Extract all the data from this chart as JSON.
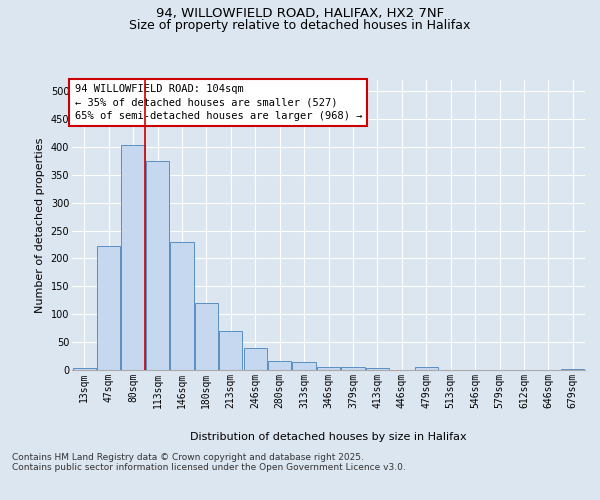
{
  "title1": "94, WILLOWFIELD ROAD, HALIFAX, HX2 7NF",
  "title2": "Size of property relative to detached houses in Halifax",
  "xlabel": "Distribution of detached houses by size in Halifax",
  "ylabel": "Number of detached properties",
  "categories": [
    "13sqm",
    "47sqm",
    "80sqm",
    "113sqm",
    "146sqm",
    "180sqm",
    "213sqm",
    "246sqm",
    "280sqm",
    "313sqm",
    "346sqm",
    "379sqm",
    "413sqm",
    "446sqm",
    "479sqm",
    "513sqm",
    "546sqm",
    "579sqm",
    "612sqm",
    "646sqm",
    "679sqm"
  ],
  "values": [
    3,
    222,
    403,
    375,
    230,
    120,
    70,
    40,
    17,
    14,
    5,
    5,
    4,
    0,
    5,
    0,
    0,
    0,
    0,
    0,
    1
  ],
  "bar_color": "#c5d8f0",
  "bar_edge_color": "#5a8fc0",
  "vline_x": 2.5,
  "vline_color": "#cc0000",
  "annotation_text": "94 WILLOWFIELD ROAD: 104sqm\n← 35% of detached houses are smaller (527)\n65% of semi-detached houses are larger (968) →",
  "annotation_box_color": "#ffffff",
  "annotation_box_edge_color": "#cc0000",
  "ylim": [
    0,
    520
  ],
  "yticks": [
    0,
    50,
    100,
    150,
    200,
    250,
    300,
    350,
    400,
    450,
    500
  ],
  "bg_color": "#dce6f0",
  "plot_bg_color": "#dce6f0",
  "grid_color": "#ffffff",
  "footer_text": "Contains HM Land Registry data © Crown copyright and database right 2025.\nContains public sector information licensed under the Open Government Licence v3.0.",
  "title_fontsize": 9.5,
  "axis_label_fontsize": 8,
  "tick_fontsize": 7,
  "annotation_fontsize": 7.5,
  "footer_fontsize": 6.5
}
